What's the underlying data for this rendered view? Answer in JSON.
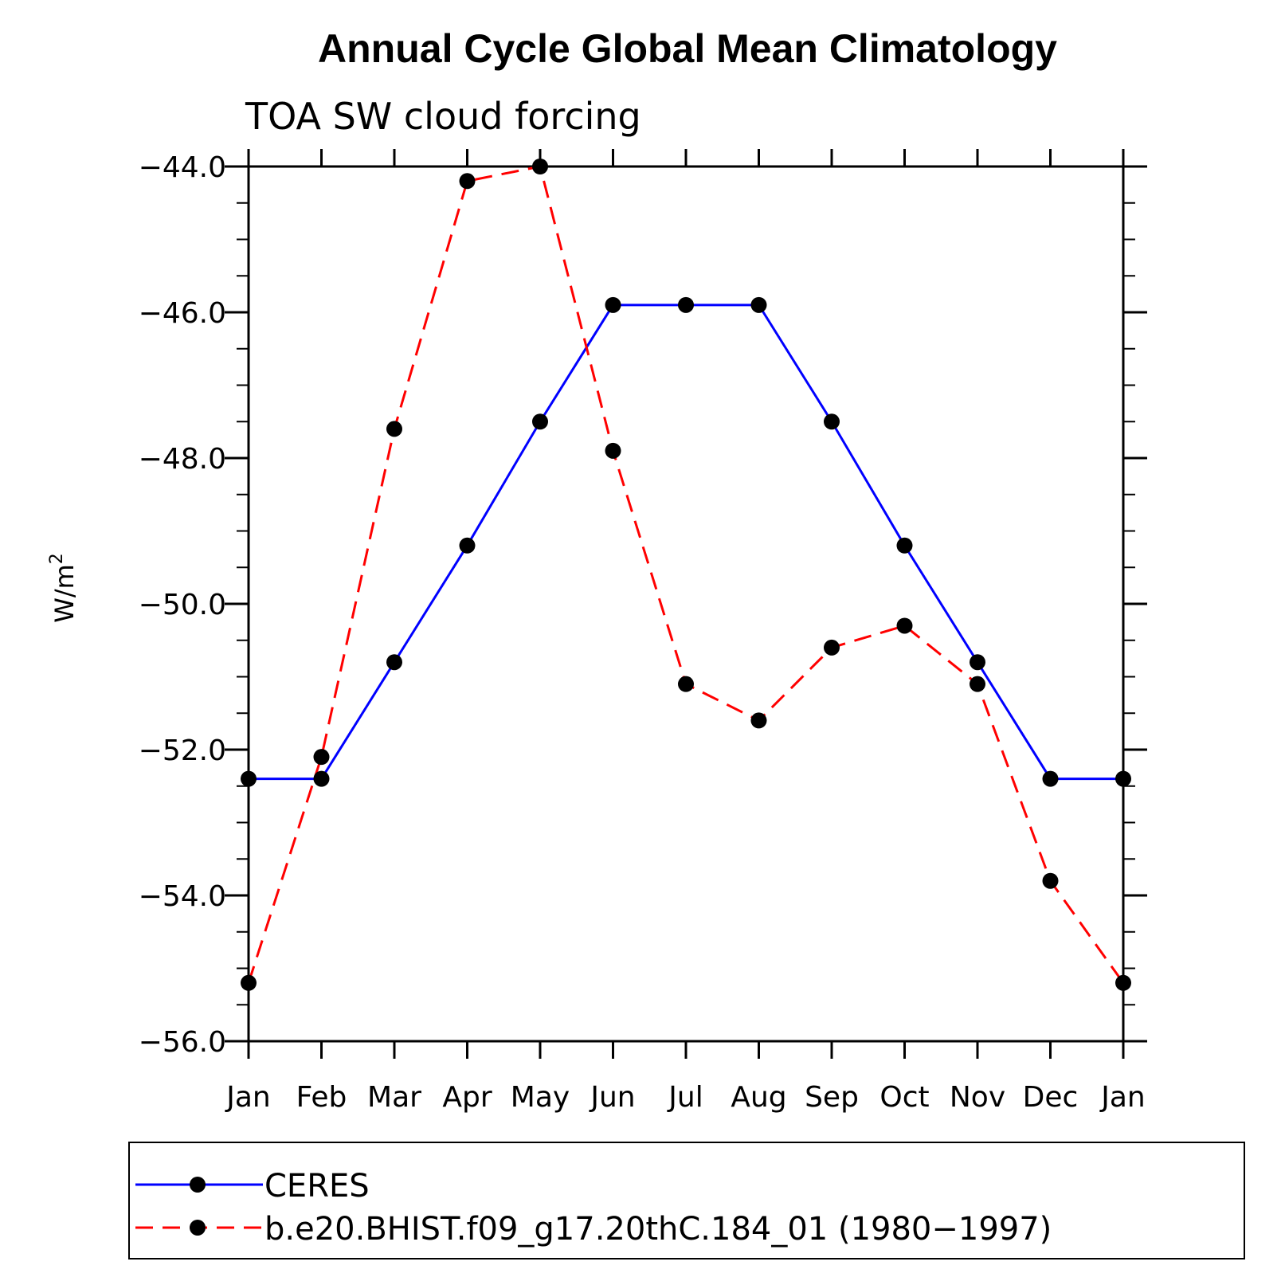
{
  "chart_data": {
    "type": "line",
    "title": "Annual Cycle Global Mean Climatology",
    "subtitle": "TOA SW cloud forcing",
    "ylabel": "W/m",
    "ylabel_superscript": "2",
    "xlabel": "",
    "categories": [
      "Jan",
      "Feb",
      "Mar",
      "Apr",
      "May",
      "Jun",
      "Jul",
      "Aug",
      "Sep",
      "Oct",
      "Nov",
      "Dec",
      "Jan"
    ],
    "ylim": [
      -56.0,
      -44.0
    ],
    "y_ticks": [
      "-44.0",
      "-46.0",
      "-48.0",
      "-50.0",
      "-52.0",
      "-54.0",
      "-56.0"
    ],
    "y_tick_values": [
      -44.0,
      -46.0,
      -48.0,
      -50.0,
      -52.0,
      -54.0,
      -56.0
    ],
    "grid": false,
    "legend_position": "bottom",
    "series": [
      {
        "name": "CERES",
        "color": "#0000ff",
        "line_style": "solid",
        "marker": "filled-circle",
        "values": [
          -52.4,
          -52.4,
          -50.8,
          -49.2,
          -47.5,
          -45.9,
          -45.9,
          -45.9,
          -47.5,
          -49.2,
          -50.8,
          -52.4,
          -52.4
        ]
      },
      {
        "name": "b.e20.BHIST.f09_g17.20thC.184_01 (1980−1997)",
        "color": "#ff0000",
        "line_style": "dashed",
        "marker": "filled-circle",
        "values": [
          -55.2,
          -52.1,
          -47.6,
          -44.2,
          -44.0,
          -47.9,
          -51.1,
          -51.6,
          -50.6,
          -50.3,
          -51.1,
          -53.8,
          -55.2
        ]
      }
    ]
  }
}
